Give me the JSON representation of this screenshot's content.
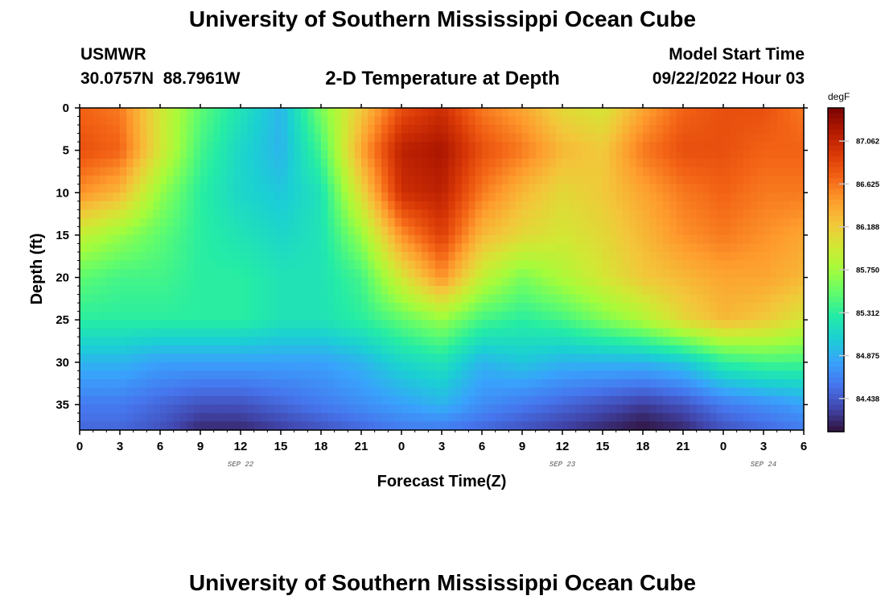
{
  "page": {
    "title": "University of Southern Mississippi Ocean Cube",
    "footer_title": "University of Southern Mississippi Ocean Cube",
    "station": "USMWR",
    "coordinates": "30.0757N  88.7961W",
    "plot_title": "2-D Temperature at Depth",
    "model_start_label": "Model Start Time",
    "model_start_value": "09/22/2022 Hour 03"
  },
  "colors": {
    "colormap": [
      "#30123b",
      "#4145ab",
      "#4675ed",
      "#39a2fc",
      "#1bcfd4",
      "#24eca6",
      "#61fc6c",
      "#a4fc3b",
      "#d1e834",
      "#f3c63a",
      "#fe9b2d",
      "#f36315",
      "#d93806",
      "#b11901",
      "#7a0403"
    ]
  },
  "chart_data": {
    "type": "heatmap",
    "title": "2-D Temperature at Depth",
    "xlabel": "Forecast Time(Z)",
    "ylabel": "Depth (ft)",
    "x_ticks": [
      "0",
      "3",
      "6",
      "9",
      "12",
      "15",
      "18",
      "21",
      "0",
      "3",
      "6",
      "9",
      "12",
      "15",
      "18",
      "21",
      "0",
      "3",
      "6"
    ],
    "date_labels": [
      {
        "label": "SEP 22",
        "hour": 12
      },
      {
        "label": "SEP 23",
        "hour": 36
      },
      {
        "label": "SEP 24",
        "hour": 51
      }
    ],
    "xlim": [
      0,
      54
    ],
    "y_ticks": [
      "0",
      "5",
      "10",
      "15",
      "20",
      "25",
      "30",
      "35"
    ],
    "ylim": [
      0,
      38
    ],
    "y_inverted": true,
    "colorbar": {
      "units": "degF",
      "ticks": [
        "84.438",
        "84.875",
        "85.312",
        "85.750",
        "86.188",
        "86.625",
        "87.062"
      ],
      "vmin": 84.1,
      "vmax": 87.4
    },
    "grid": {
      "hours": [
        0,
        3,
        6,
        9,
        12,
        15,
        18,
        21,
        24,
        27,
        30,
        33,
        36,
        39,
        42,
        45,
        48,
        51,
        54
      ],
      "depths_ft": [
        0,
        5,
        10,
        15,
        20,
        25,
        30,
        35,
        38
      ],
      "values_degF": [
        [
          86.7,
          86.6,
          86.0,
          85.5,
          85.2,
          84.9,
          85.6,
          86.2,
          86.8,
          87.0,
          86.6,
          86.4,
          86.1,
          86.0,
          86.4,
          86.7,
          86.8,
          86.8,
          86.6
        ],
        [
          86.8,
          86.7,
          86.0,
          85.4,
          85.1,
          84.9,
          85.4,
          86.4,
          87.1,
          87.2,
          86.8,
          86.6,
          86.3,
          86.2,
          86.6,
          86.8,
          86.8,
          86.7,
          86.7
        ],
        [
          86.5,
          86.3,
          85.7,
          85.3,
          85.1,
          85.0,
          85.2,
          86.1,
          87.0,
          87.1,
          86.6,
          86.3,
          86.1,
          86.2,
          86.4,
          86.6,
          86.7,
          86.6,
          86.6
        ],
        [
          85.9,
          85.7,
          85.5,
          85.3,
          85.2,
          85.1,
          85.2,
          85.7,
          86.5,
          86.9,
          86.3,
          86.1,
          86.0,
          86.1,
          86.3,
          86.5,
          86.6,
          86.5,
          86.4
        ],
        [
          85.5,
          85.4,
          85.4,
          85.3,
          85.3,
          85.2,
          85.2,
          85.4,
          86.0,
          86.5,
          85.9,
          85.6,
          85.8,
          86.0,
          86.2,
          86.3,
          86.4,
          86.4,
          86.3
        ],
        [
          85.3,
          85.3,
          85.3,
          85.3,
          85.3,
          85.2,
          85.2,
          85.3,
          85.5,
          85.7,
          85.4,
          85.3,
          85.4,
          85.6,
          85.8,
          86.1,
          86.3,
          86.2,
          86.0
        ],
        [
          84.9,
          84.9,
          84.8,
          84.8,
          84.8,
          84.8,
          84.8,
          84.9,
          85.1,
          85.2,
          84.9,
          85.0,
          84.9,
          84.9,
          84.9,
          85.0,
          85.3,
          85.4,
          85.4
        ],
        [
          84.6,
          84.6,
          84.5,
          84.4,
          84.4,
          84.5,
          84.6,
          84.7,
          84.8,
          84.9,
          84.7,
          84.6,
          84.5,
          84.4,
          84.3,
          84.4,
          84.6,
          84.7,
          84.8
        ],
        [
          84.5,
          84.5,
          84.4,
          84.2,
          84.2,
          84.3,
          84.4,
          84.5,
          84.6,
          84.6,
          84.5,
          84.4,
          84.3,
          84.2,
          84.1,
          84.2,
          84.4,
          84.5,
          84.6
        ]
      ]
    }
  }
}
